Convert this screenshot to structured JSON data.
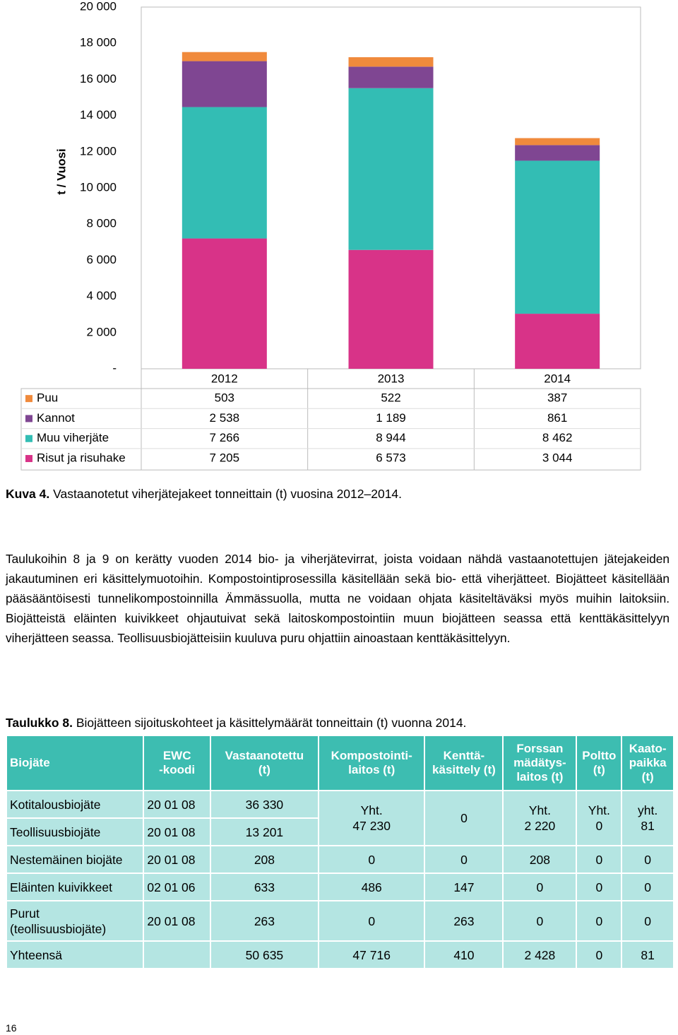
{
  "chart_data": {
    "type": "bar",
    "stacked": true,
    "y_label": "t / Vuosi",
    "categories": [
      "2012",
      "2013",
      "2014"
    ],
    "series": [
      {
        "name": "Puu",
        "color": "#f08a3c",
        "values": [
          503,
          522,
          387
        ],
        "value_labels": [
          "503",
          "522",
          "387"
        ]
      },
      {
        "name": "Kannot",
        "color": "#7f4692",
        "values": [
          2538,
          1189,
          861
        ],
        "value_labels": [
          "2 538",
          "1 189",
          "861"
        ]
      },
      {
        "name": "Muu viherjäte",
        "color": "#33bdb4",
        "values": [
          7266,
          8944,
          8462
        ],
        "value_labels": [
          "7 266",
          "8 944",
          "8 462"
        ]
      },
      {
        "name": "Risut ja risuhake",
        "color": "#d83388",
        "values": [
          7205,
          6573,
          3044
        ],
        "value_labels": [
          "7 205",
          "6 573",
          "3 044"
        ]
      }
    ],
    "ylim": [
      0,
      20000
    ],
    "yticks": [
      {
        "value": 0,
        "label": "-"
      },
      {
        "value": 2000,
        "label": "2 000"
      },
      {
        "value": 4000,
        "label": "4 000"
      },
      {
        "value": 6000,
        "label": "6 000"
      },
      {
        "value": 8000,
        "label": "8 000"
      },
      {
        "value": 10000,
        "label": "10 000"
      },
      {
        "value": 12000,
        "label": "12 000"
      },
      {
        "value": 14000,
        "label": "14 000"
      },
      {
        "value": 16000,
        "label": "16 000"
      },
      {
        "value": 18000,
        "label": "18 000"
      },
      {
        "value": 20000,
        "label": "20 000"
      }
    ],
    "grid": false
  },
  "caption": {
    "label": "Kuva 4.",
    "text": "Vastaanotetut viherjätejakeet tonneittain (t) vuosina 2012–2014."
  },
  "paragraph": "Taulukoihin 8 ja 9 on kerätty vuoden 2014 bio- ja viherjätevirrat, joista voidaan nähdä vastaanotettujen jätejakeiden jakautuminen eri käsittelymuotoihin. Kompostointiprosessilla käsitellään sekä bio- että viherjätteet. Biojätteet käsitellään pääsääntöisesti tunnelikompostoinnilla Ämmässuolla, mutta ne voidaan ohjata käsiteltäväksi myös muihin laitoksiin. Biojätteistä eläinten kuivikkeet ohjautuivat sekä laitoskompostointiin muun biojätteen seassa että kenttäkäsittelyyn viherjätteen seassa. Teollisuusbiojätteisiin kuuluva puru ohjattiin ainoastaan kenttäkäsittelyyn.",
  "table": {
    "title_label": "Taulukko 8.",
    "title": "Biojätteen sijoituskohteet ja käsittelymäärät tonneittain (t) vuonna 2014.",
    "header": [
      "Biojäte",
      "EWC\n-koodi",
      "Vastaanotettu\n(t)",
      "Kompostointi-\nlaitos (t)",
      "Kenttä-\nkäsittely (t)",
      "Forssan\nmädätys-\nlaitos (t)",
      "Poltto\n(t)",
      "Kaato-\npaikka\n(t)"
    ],
    "rows": [
      [
        "Kotitalousbiojäte",
        "20 01 08",
        "36 330",
        "Yht.\n47 230",
        "0",
        "Yht.\n2 220",
        "Yht.\n0",
        "yht.\n81"
      ],
      [
        "Teollisuusbiojäte",
        "20 01 08",
        "13 201"
      ],
      [
        "Nestemäinen biojäte",
        "20 01 08",
        "208",
        "0",
        "0",
        "208",
        "0",
        "0"
      ],
      [
        "Eläinten kuivikkeet",
        "02 01 06",
        "633",
        "486",
        "147",
        "0",
        "0",
        "0"
      ],
      [
        "Purut\n(teollisuusbiojäte)",
        "20 01 08",
        "263",
        "0",
        "263",
        "0",
        "0",
        "0"
      ],
      [
        "Yhteensä",
        "",
        "50 635",
        "47 716",
        "410",
        "2 428",
        "0",
        "81"
      ]
    ]
  },
  "page_number": "16"
}
